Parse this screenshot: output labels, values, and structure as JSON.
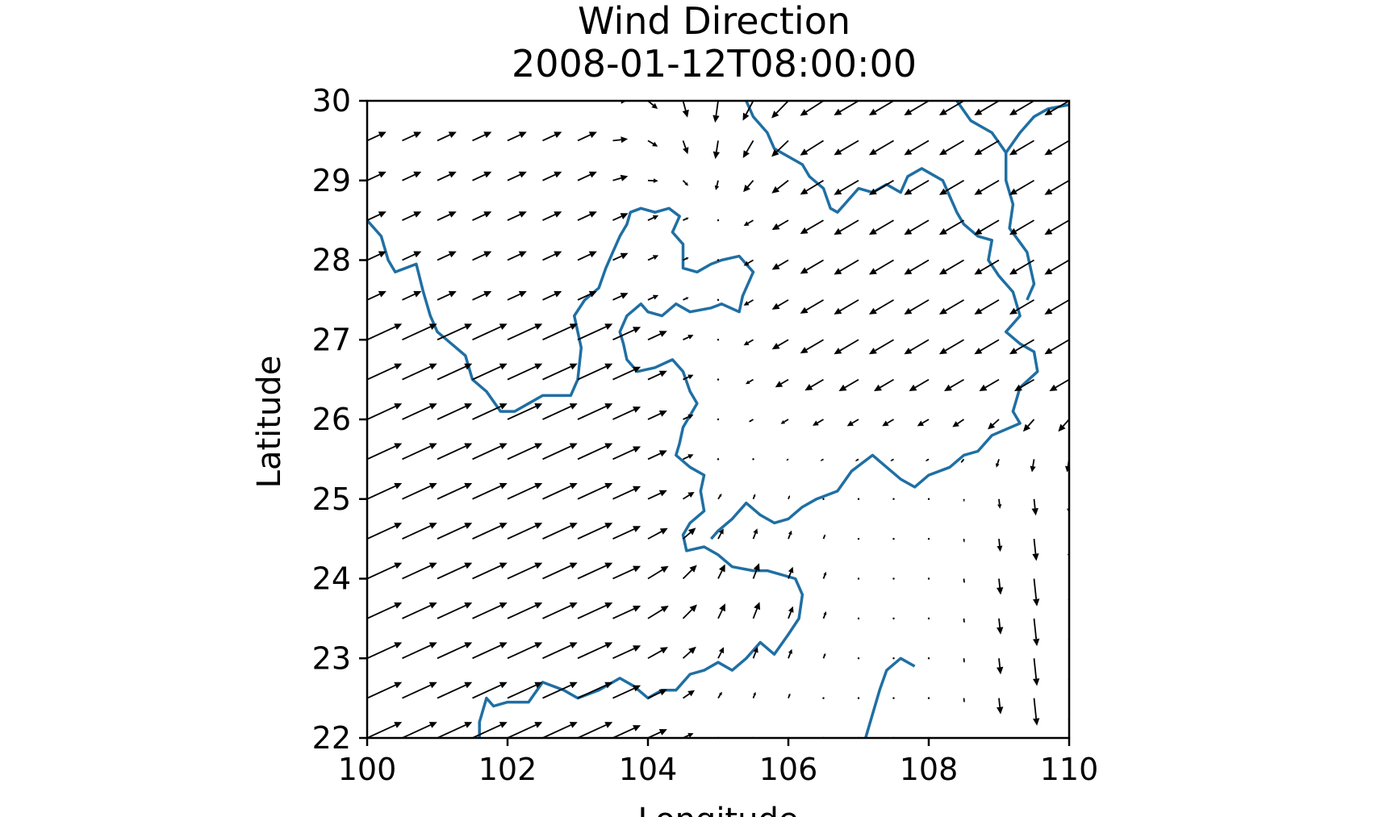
{
  "chart_data": {
    "type": "quiver",
    "title": "Wind Direction",
    "subtitle": "2008-01-12T08:00:00",
    "xlabel": "Longitude",
    "ylabel": "Latitude",
    "xlim": [
      100,
      110
    ],
    "ylim": [
      22,
      30
    ],
    "xticks": [
      "100",
      "102",
      "104",
      "106",
      "108",
      "110"
    ],
    "yticks": [
      "22",
      "23",
      "24",
      "25",
      "26",
      "27",
      "28",
      "29",
      "30"
    ],
    "grid": false,
    "legend": "none",
    "arrow_color": "#000000",
    "boundary_color": "#1f6fa3",
    "grid_spacing_deg": 0.5,
    "vector_grid": {
      "lon": [
        100.0,
        100.5,
        101.0,
        101.5,
        102.0,
        102.5,
        103.0,
        103.5,
        104.0,
        104.5,
        105.0,
        105.5,
        106.0,
        106.5,
        107.0,
        107.5,
        108.0,
        108.5,
        109.0,
        109.5,
        110.0
      ],
      "lat": [
        22.0,
        22.5,
        23.0,
        23.5,
        24.0,
        24.5,
        25.0,
        25.5,
        26.0,
        26.5,
        27.0,
        27.5,
        28.0,
        28.5,
        29.0,
        29.5,
        30.0
      ]
    },
    "wind_field_description": "Southwest flow over the western half of the domain converging near 104.5E 26N; northeasterly to northerly flow over the northeast; northerly flow along 109-110E in the south",
    "boundaries": [
      {
        "name": "boundary-west",
        "points": [
          [
            100.0,
            28.5
          ],
          [
            100.2,
            28.3
          ],
          [
            100.3,
            28.0
          ],
          [
            100.4,
            27.85
          ],
          [
            100.7,
            27.95
          ],
          [
            100.8,
            27.6
          ],
          [
            100.9,
            27.3
          ],
          [
            101.0,
            27.1
          ],
          [
            101.2,
            26.95
          ],
          [
            101.4,
            26.8
          ],
          [
            101.5,
            26.5
          ],
          [
            101.7,
            26.35
          ],
          [
            101.9,
            26.1
          ],
          [
            102.1,
            26.1
          ],
          [
            102.3,
            26.2
          ],
          [
            102.5,
            26.3
          ],
          [
            102.7,
            26.3
          ],
          [
            102.9,
            26.3
          ],
          [
            103.0,
            26.5
          ],
          [
            103.05,
            26.9
          ],
          [
            102.95,
            27.3
          ],
          [
            103.1,
            27.5
          ],
          [
            103.3,
            27.65
          ],
          [
            103.4,
            27.9
          ],
          [
            103.5,
            28.1
          ],
          [
            103.6,
            28.3
          ],
          [
            103.7,
            28.45
          ],
          [
            103.75,
            28.6
          ],
          [
            103.9,
            28.65
          ],
          [
            104.1,
            28.6
          ],
          [
            104.3,
            28.65
          ],
          [
            104.45,
            28.55
          ],
          [
            104.35,
            28.35
          ],
          [
            104.5,
            28.2
          ],
          [
            104.5,
            27.9
          ],
          [
            104.7,
            27.85
          ],
          [
            104.9,
            27.95
          ],
          [
            105.05,
            28.0
          ],
          [
            105.3,
            28.05
          ],
          [
            105.5,
            27.85
          ],
          [
            105.35,
            27.55
          ],
          [
            105.3,
            27.35
          ],
          [
            105.05,
            27.45
          ],
          [
            104.9,
            27.4
          ],
          [
            104.6,
            27.35
          ],
          [
            104.4,
            27.45
          ],
          [
            104.2,
            27.3
          ],
          [
            104.0,
            27.35
          ],
          [
            103.9,
            27.45
          ],
          [
            103.7,
            27.3
          ],
          [
            103.6,
            27.1
          ],
          [
            103.65,
            26.95
          ],
          [
            103.7,
            26.75
          ],
          [
            103.85,
            26.6
          ],
          [
            104.1,
            26.65
          ],
          [
            104.35,
            26.75
          ],
          [
            104.5,
            26.6
          ],
          [
            104.6,
            26.35
          ],
          [
            104.7,
            26.2
          ],
          [
            104.6,
            26.05
          ],
          [
            104.5,
            25.9
          ],
          [
            104.45,
            25.7
          ],
          [
            104.4,
            25.55
          ],
          [
            104.6,
            25.4
          ],
          [
            104.8,
            25.3
          ],
          [
            104.75,
            25.1
          ],
          [
            104.8,
            24.85
          ],
          [
            104.6,
            24.7
          ],
          [
            104.5,
            24.55
          ],
          [
            104.55,
            24.35
          ],
          [
            104.8,
            24.4
          ],
          [
            105.0,
            24.3
          ],
          [
            105.2,
            24.15
          ],
          [
            105.5,
            24.1
          ],
          [
            105.7,
            24.1
          ],
          [
            106.1,
            24.0
          ],
          [
            106.2,
            23.8
          ],
          [
            106.15,
            23.5
          ],
          [
            106.0,
            23.3
          ],
          [
            105.8,
            23.05
          ],
          [
            105.6,
            23.2
          ],
          [
            105.4,
            23.0
          ],
          [
            105.2,
            22.85
          ],
          [
            105.0,
            22.95
          ],
          [
            104.8,
            22.85
          ],
          [
            104.6,
            22.8
          ],
          [
            104.4,
            22.6
          ],
          [
            104.2,
            22.6
          ],
          [
            104.0,
            22.5
          ],
          [
            103.8,
            22.65
          ],
          [
            103.6,
            22.75
          ],
          [
            103.3,
            22.6
          ],
          [
            103.0,
            22.5
          ],
          [
            102.8,
            22.6
          ],
          [
            102.5,
            22.7
          ],
          [
            102.3,
            22.45
          ],
          [
            102.0,
            22.45
          ],
          [
            101.8,
            22.4
          ],
          [
            101.7,
            22.5
          ],
          [
            101.6,
            22.2
          ],
          [
            101.6,
            22.0
          ]
        ]
      },
      {
        "name": "boundary-east",
        "points": [
          [
            105.4,
            30.0
          ],
          [
            105.5,
            29.8
          ],
          [
            105.7,
            29.6
          ],
          [
            105.8,
            29.4
          ],
          [
            106.0,
            29.3
          ],
          [
            106.2,
            29.2
          ],
          [
            106.3,
            29.05
          ],
          [
            106.5,
            28.9
          ],
          [
            106.6,
            28.65
          ],
          [
            106.7,
            28.6
          ],
          [
            106.8,
            28.7
          ],
          [
            107.0,
            28.9
          ],
          [
            107.2,
            28.85
          ],
          [
            107.4,
            28.95
          ],
          [
            107.6,
            28.85
          ],
          [
            107.7,
            29.05
          ],
          [
            107.9,
            29.15
          ],
          [
            108.2,
            29.0
          ],
          [
            108.3,
            28.8
          ],
          [
            108.4,
            28.6
          ],
          [
            108.5,
            28.45
          ],
          [
            108.7,
            28.3
          ],
          [
            108.9,
            28.25
          ],
          [
            108.85,
            28.0
          ],
          [
            109.0,
            27.8
          ],
          [
            109.2,
            27.6
          ],
          [
            109.3,
            27.3
          ],
          [
            109.1,
            27.1
          ],
          [
            109.3,
            26.95
          ],
          [
            109.5,
            26.85
          ],
          [
            109.55,
            26.6
          ],
          [
            109.3,
            26.4
          ],
          [
            109.2,
            26.1
          ],
          [
            109.3,
            25.95
          ],
          [
            108.9,
            25.8
          ],
          [
            108.7,
            25.6
          ],
          [
            108.5,
            25.55
          ],
          [
            108.3,
            25.4
          ],
          [
            108.0,
            25.3
          ],
          [
            107.8,
            25.15
          ],
          [
            107.6,
            25.25
          ],
          [
            107.4,
            25.4
          ],
          [
            107.2,
            25.55
          ],
          [
            106.9,
            25.35
          ],
          [
            106.7,
            25.1
          ],
          [
            106.4,
            25.0
          ],
          [
            106.2,
            24.9
          ],
          [
            106.0,
            24.75
          ],
          [
            105.8,
            24.7
          ],
          [
            105.6,
            24.8
          ],
          [
            105.4,
            24.95
          ],
          [
            105.2,
            24.75
          ],
          [
            105.0,
            24.6
          ],
          [
            104.9,
            24.5
          ]
        ]
      },
      {
        "name": "boundary-north-east",
        "points": [
          [
            108.4,
            30.0
          ],
          [
            108.6,
            29.75
          ],
          [
            108.9,
            29.6
          ],
          [
            109.1,
            29.35
          ],
          [
            109.1,
            29.0
          ],
          [
            109.2,
            28.7
          ],
          [
            109.15,
            28.4
          ],
          [
            109.4,
            28.1
          ],
          [
            109.5,
            27.7
          ],
          [
            109.4,
            27.5
          ]
        ]
      },
      {
        "name": "boundary-north-east-2",
        "points": [
          [
            109.1,
            29.35
          ],
          [
            109.3,
            29.6
          ],
          [
            109.5,
            29.8
          ],
          [
            109.7,
            29.9
          ],
          [
            110.0,
            29.95
          ]
        ]
      },
      {
        "name": "boundary-south-east",
        "points": [
          [
            107.1,
            22.0
          ],
          [
            107.2,
            22.3
          ],
          [
            107.3,
            22.6
          ],
          [
            107.4,
            22.85
          ],
          [
            107.6,
            23.0
          ],
          [
            107.8,
            22.9
          ]
        ]
      }
    ]
  }
}
